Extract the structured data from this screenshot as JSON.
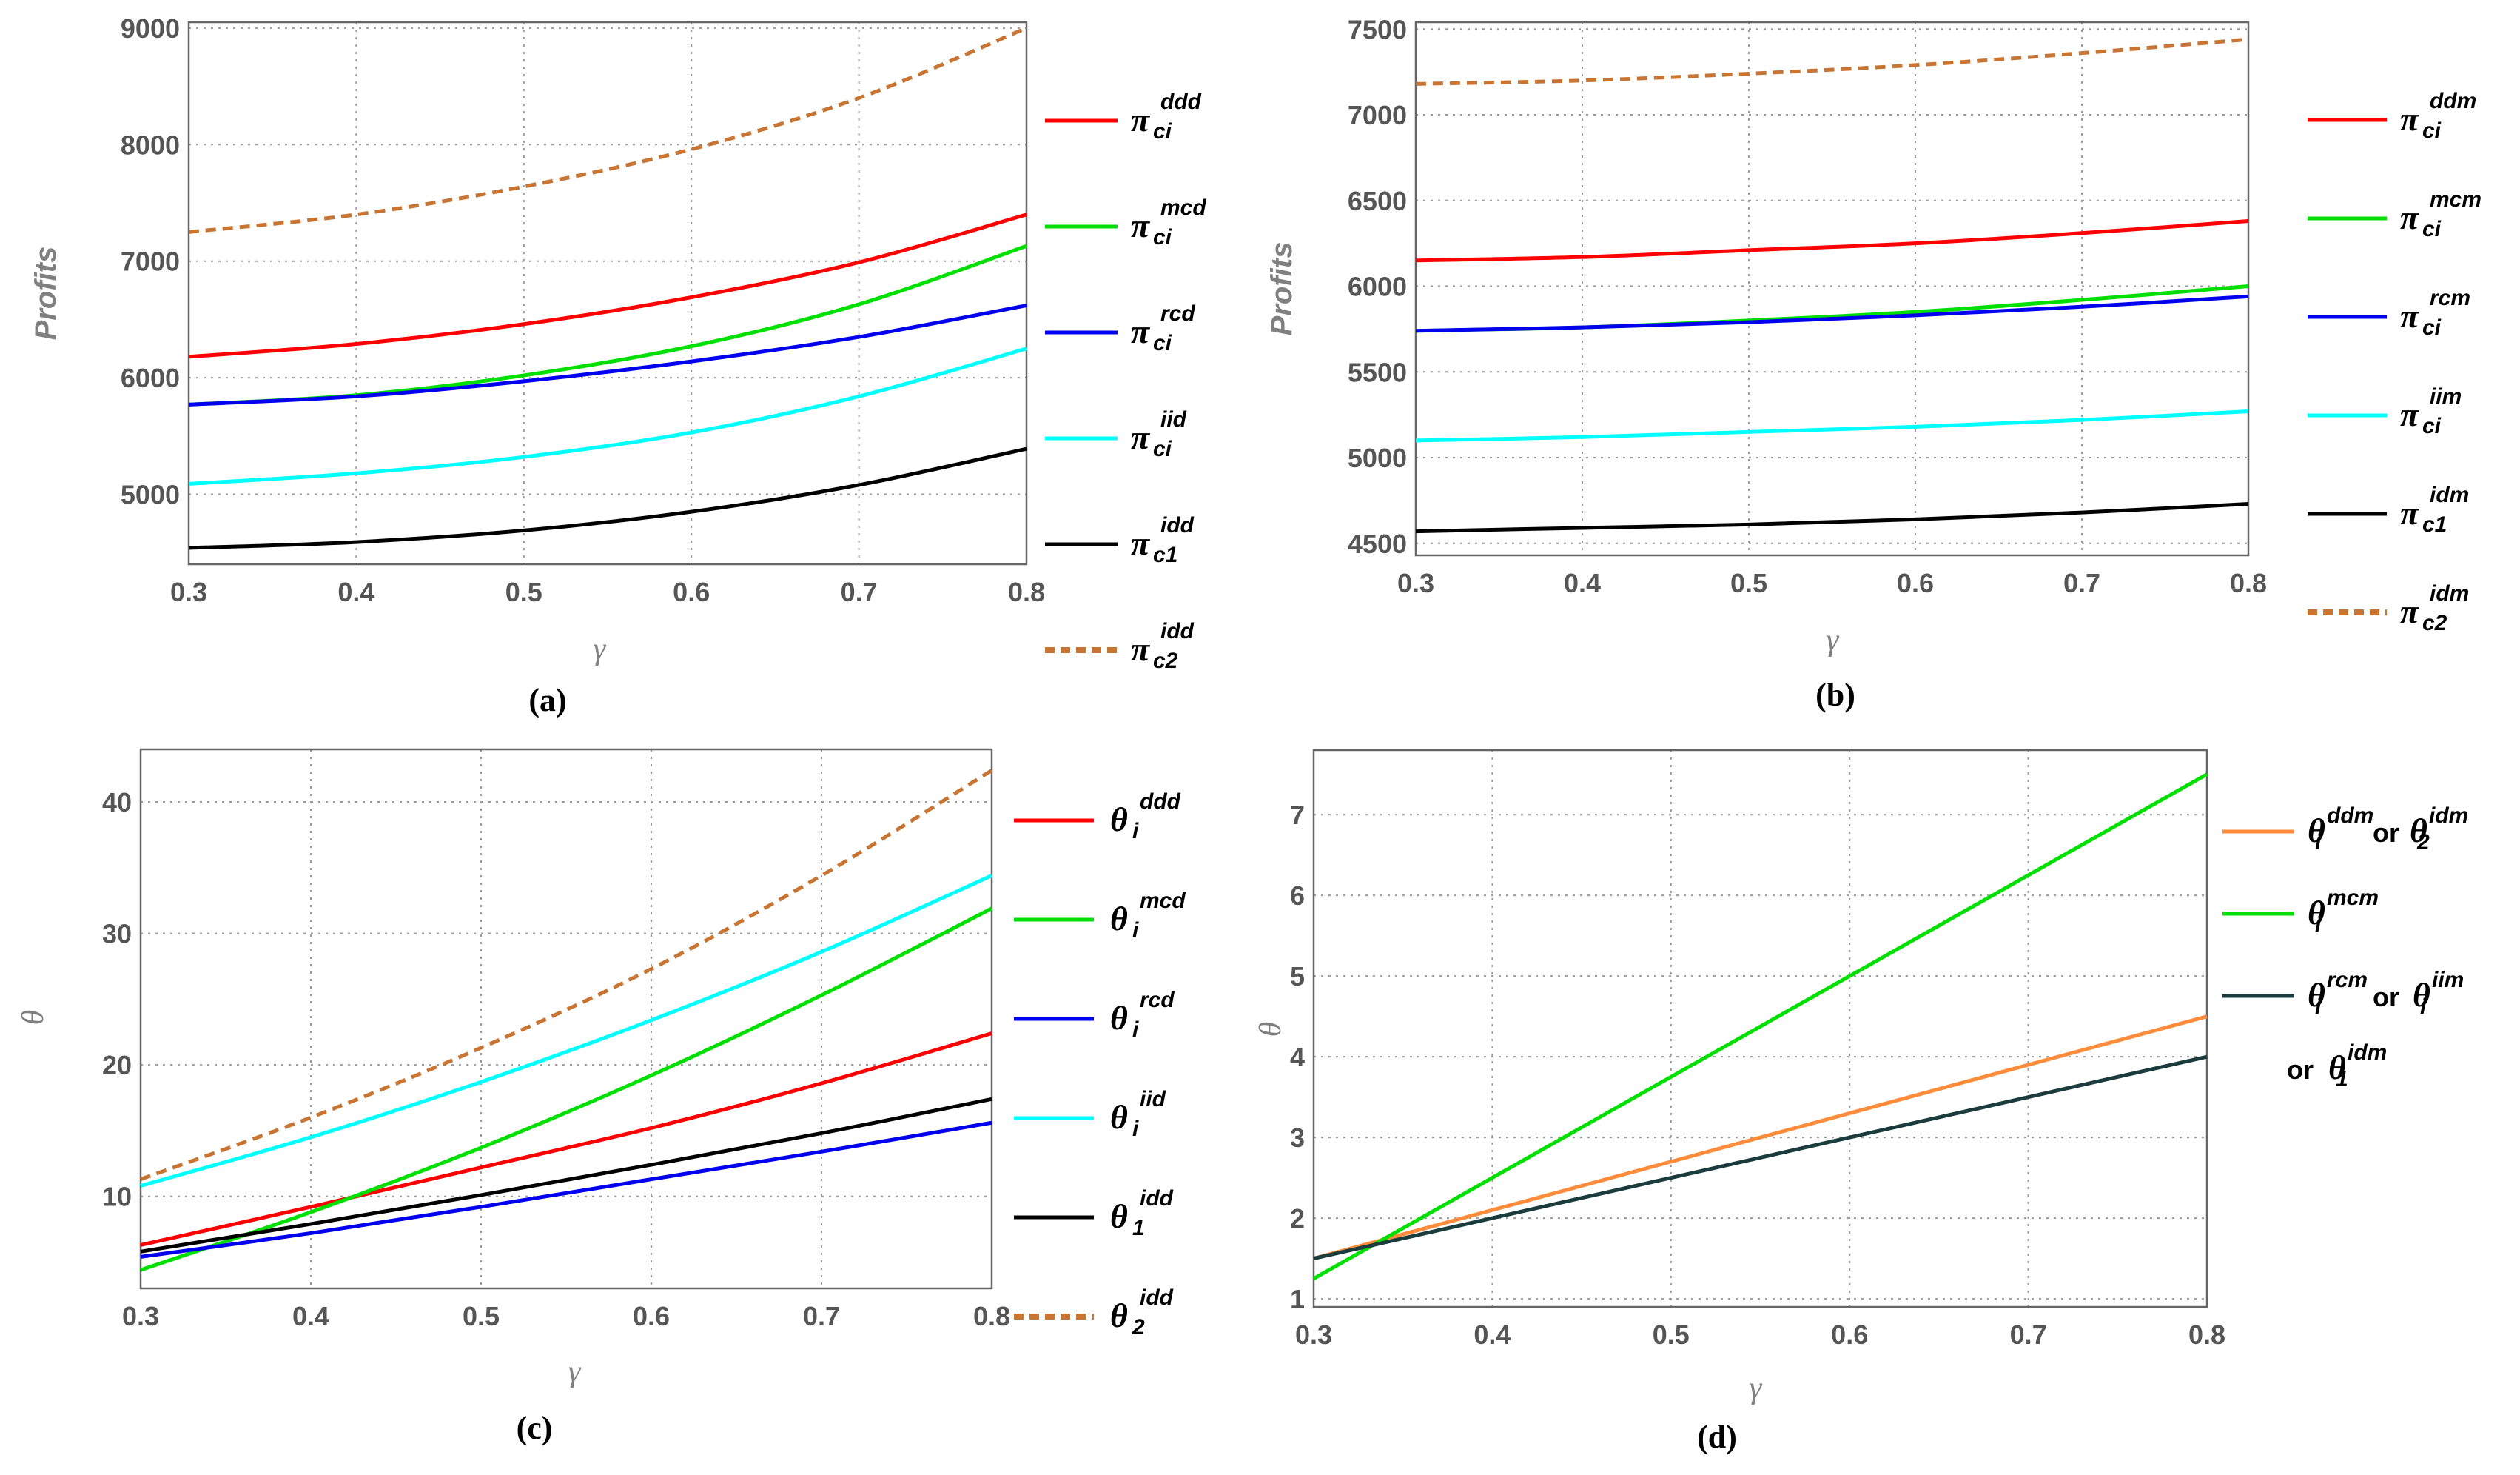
{
  "chart_data": [
    {
      "id": "a",
      "type": "line",
      "caption": "(a)",
      "xlabel": "γ",
      "ylabel": "Profits",
      "xlim": [
        0.3,
        0.8
      ],
      "ylim": [
        4400,
        9050
      ],
      "xticks": [
        0.3,
        0.4,
        0.5,
        0.6,
        0.7,
        0.8
      ],
      "xtick_labels": [
        "0.3",
        "0.4",
        "0.5",
        "0.6",
        "0.7",
        "0.8"
      ],
      "yticks": [
        5000,
        6000,
        7000,
        8000,
        9000
      ],
      "ytick_labels": [
        "5000",
        "6000",
        "7000",
        "8000",
        "9000"
      ],
      "grid": true,
      "x": [
        0.3,
        0.4,
        0.5,
        0.6,
        0.7,
        0.8
      ],
      "series": [
        {
          "name": "π_ci^ddd",
          "base": "π",
          "sub": "ci",
          "sup": "ddd",
          "color": "#ff0000",
          "dashed": false,
          "values": [
            6180,
            6290,
            6460,
            6690,
            6990,
            7400
          ]
        },
        {
          "name": "π_ci^mcd",
          "base": "π",
          "sub": "ci",
          "sup": "mcd",
          "color": "#00e000",
          "dashed": false,
          "values": [
            5770,
            5850,
            6020,
            6270,
            6630,
            7130
          ]
        },
        {
          "name": "π_ci^rcd",
          "base": "π",
          "sub": "ci",
          "sup": "rcd",
          "color": "#0000ee",
          "dashed": false,
          "values": [
            5770,
            5840,
            5970,
            6140,
            6350,
            6620
          ]
        },
        {
          "name": "π_ci^iid",
          "base": "π",
          "sub": "ci",
          "sup": "iid",
          "color": "#00ffff",
          "dashed": false,
          "values": [
            5090,
            5180,
            5320,
            5530,
            5840,
            6250
          ]
        },
        {
          "name": "π_c1^idd",
          "base": "π",
          "sub": "c1",
          "sup": "idd",
          "color": "#000000",
          "dashed": false,
          "values": [
            4540,
            4590,
            4690,
            4850,
            5080,
            5390
          ]
        },
        {
          "name": "π_c2^idd",
          "base": "π",
          "sub": "c2",
          "sup": "idd",
          "color": "#c87533",
          "dashed": true,
          "values": [
            7250,
            7400,
            7640,
            7960,
            8400,
            9000
          ]
        }
      ]
    },
    {
      "id": "b",
      "type": "line",
      "caption": "(b)",
      "xlabel": "γ",
      "ylabel": "Profits",
      "xlim": [
        0.3,
        0.8
      ],
      "ylim": [
        4430,
        7540
      ],
      "xticks": [
        0.3,
        0.4,
        0.5,
        0.6,
        0.7,
        0.8
      ],
      "xtick_labels": [
        "0.3",
        "0.4",
        "0.5",
        "0.6",
        "0.7",
        "0.8"
      ],
      "yticks": [
        4500,
        5000,
        5500,
        6000,
        6500,
        7000,
        7500
      ],
      "ytick_labels": [
        "4500",
        "5000",
        "5500",
        "6000",
        "6500",
        "7000",
        "7500"
      ],
      "grid": true,
      "x": [
        0.3,
        0.4,
        0.5,
        0.6,
        0.7,
        0.8
      ],
      "series": [
        {
          "name": "π_ci^ddm",
          "base": "π",
          "sub": "ci",
          "sup": "ddm",
          "color": "#ff0000",
          "dashed": false,
          "values": [
            6150,
            6170,
            6210,
            6250,
            6310,
            6380
          ]
        },
        {
          "name": "π_ci^mcm",
          "base": "π",
          "sub": "ci",
          "sup": "mcm",
          "color": "#00e000",
          "dashed": false,
          "values": [
            5740,
            5760,
            5800,
            5850,
            5920,
            6000
          ]
        },
        {
          "name": "π_ci^rcm",
          "base": "π",
          "sub": "ci",
          "sup": "rcm",
          "color": "#0000ee",
          "dashed": false,
          "values": [
            5740,
            5760,
            5790,
            5830,
            5880,
            5940
          ]
        },
        {
          "name": "π_ci^iim",
          "base": "π",
          "sub": "ci",
          "sup": "iim",
          "color": "#00ffff",
          "dashed": false,
          "values": [
            5100,
            5120,
            5150,
            5180,
            5220,
            5270
          ]
        },
        {
          "name": "π_c1^idm",
          "base": "π",
          "sub": "c1",
          "sup": "idm",
          "color": "#000000",
          "dashed": false,
          "values": [
            4570,
            4590,
            4610,
            4640,
            4680,
            4730
          ]
        },
        {
          "name": "π_c2^idm",
          "base": "π",
          "sub": "c2",
          "sup": "idm",
          "color": "#c87533",
          "dashed": true,
          "values": [
            7180,
            7200,
            7240,
            7290,
            7360,
            7440
          ]
        }
      ]
    },
    {
      "id": "c",
      "type": "line",
      "caption": "(c)",
      "xlabel": "γ",
      "ylabel": "θ",
      "xlim": [
        0.3,
        0.8
      ],
      "ylim": [
        3,
        44
      ],
      "xticks": [
        0.3,
        0.4,
        0.5,
        0.6,
        0.7,
        0.8
      ],
      "xtick_labels": [
        "0.3",
        "0.4",
        "0.5",
        "0.6",
        "0.7",
        "0.8"
      ],
      "yticks": [
        10,
        20,
        30,
        40
      ],
      "ytick_labels": [
        "10",
        "20",
        "30",
        "40"
      ],
      "grid": true,
      "x": [
        0.3,
        0.4,
        0.5,
        0.6,
        0.7,
        0.8
      ],
      "series": [
        {
          "name": "θ_i^ddd",
          "base": "θ",
          "sub": "i",
          "sup": "ddd",
          "color": "#ff0000",
          "dashed": false,
          "values": [
            6.3,
            9.2,
            12.2,
            15.2,
            18.6,
            22.4
          ]
        },
        {
          "name": "θ_i^mcd",
          "base": "θ",
          "sub": "i",
          "sup": "mcd",
          "color": "#00e000",
          "dashed": false,
          "values": [
            4.4,
            8.8,
            13.7,
            19.2,
            25.3,
            31.9
          ]
        },
        {
          "name": "θ_i^rcd",
          "base": "θ",
          "sub": "i",
          "sup": "rcd",
          "color": "#0000ee",
          "dashed": false,
          "values": [
            5.4,
            7.2,
            9.2,
            11.3,
            13.4,
            15.6
          ]
        },
        {
          "name": "θ_i^iid",
          "base": "θ",
          "sub": "i",
          "sup": "iid",
          "color": "#00ffff",
          "dashed": false,
          "values": [
            10.8,
            14.5,
            18.7,
            23.4,
            28.6,
            34.4
          ]
        },
        {
          "name": "θ_1^idd",
          "base": "θ",
          "sub": "1",
          "sup": "idd",
          "color": "#000000",
          "dashed": false,
          "values": [
            5.8,
            7.9,
            10.1,
            12.4,
            14.8,
            17.4
          ]
        },
        {
          "name": "θ_2^idd",
          "base": "θ",
          "sub": "2",
          "sup": "idd",
          "color": "#c87533",
          "dashed": true,
          "values": [
            11.3,
            16.0,
            21.3,
            27.3,
            34.4,
            42.4
          ]
        }
      ]
    },
    {
      "id": "d",
      "type": "line",
      "caption": "(d)",
      "xlabel": "γ",
      "ylabel": "θ",
      "xlim": [
        0.3,
        0.8
      ],
      "ylim": [
        0.9,
        7.8
      ],
      "xticks": [
        0.3,
        0.4,
        0.5,
        0.6,
        0.7,
        0.8
      ],
      "xtick_labels": [
        "0.3",
        "0.4",
        "0.5",
        "0.6",
        "0.7",
        "0.8"
      ],
      "yticks": [
        1,
        2,
        3,
        4,
        5,
        6,
        7
      ],
      "ytick_labels": [
        "1",
        "2",
        "3",
        "4",
        "5",
        "6",
        "7"
      ],
      "grid": true,
      "x": [
        0.3,
        0.8
      ],
      "series": [
        {
          "name": "θ_i^ddm or θ_2^idm",
          "color": "#ff8c3a",
          "dashed": false,
          "values": [
            1.5,
            4.5
          ]
        },
        {
          "name": "θ_i^mcm",
          "color": "#00e000",
          "dashed": false,
          "values": [
            1.25,
            7.5
          ]
        },
        {
          "name": "θ_i^rcm or θ_i^iim or θ_1^idm",
          "color": "#1a3c3c",
          "dashed": false,
          "values": [
            1.5,
            4.0
          ]
        }
      ],
      "legend_text": {
        "or": "or"
      }
    }
  ]
}
